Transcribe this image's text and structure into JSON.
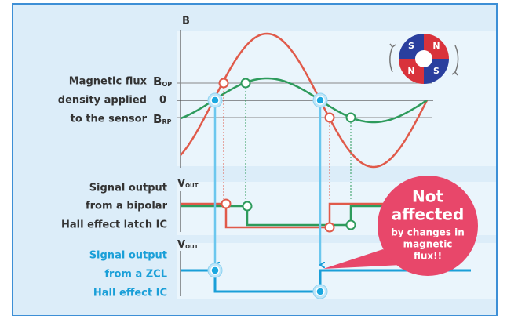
{
  "diagram": {
    "flux_graph": {
      "axis_label": "B",
      "label_lines": [
        "Magnetic flux",
        "density applied",
        "to the sensor"
      ],
      "levels": {
        "b_op": {
          "symbol": "B",
          "subscript": "OP"
        },
        "zero": "0",
        "b_rp": {
          "symbol": "B",
          "subscript": "RP"
        }
      }
    },
    "bipolar_latch": {
      "axis_label": {
        "symbol": "V",
        "subscript": "OUT"
      },
      "label_lines": [
        "Signal output",
        "from a bipolar",
        "Hall effect latch IC"
      ]
    },
    "zcl": {
      "axis_label": {
        "symbol": "V",
        "subscript": "OUT"
      },
      "label_lines": [
        "Signal output",
        "from a ZCL",
        "Hall effect IC"
      ]
    },
    "callout": {
      "lines": [
        "Not",
        "affected",
        "by changes in",
        "magnetic",
        "flux!!"
      ]
    },
    "magnet": {
      "poles": [
        "S",
        "N",
        "N",
        "S"
      ]
    }
  }
}
